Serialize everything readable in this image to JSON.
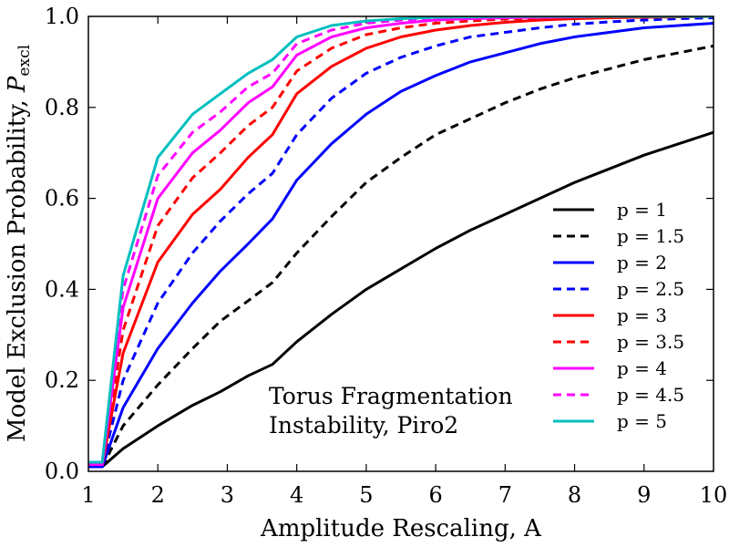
{
  "chart_data": {
    "type": "line",
    "title": "",
    "xlabel": "Amplitude Rescaling, A",
    "ylabel_main": "Model Exclusion Probability, ",
    "ylabel_symbol": "P",
    "ylabel_sub": "excl",
    "xlim": [
      1,
      10
    ],
    "ylim": [
      0,
      1
    ],
    "xticks": [
      "1",
      "2",
      "3",
      "4",
      "5",
      "6",
      "7",
      "8",
      "9",
      "10"
    ],
    "yticks": [
      "0.0",
      "0.2",
      "0.4",
      "0.6",
      "0.8",
      "1.0"
    ],
    "grid": false,
    "legend_position": "right",
    "annotation_lines": [
      "Torus Fragmentation",
      "Instability, Piro2"
    ],
    "series": [
      {
        "name": "p = 1",
        "color": "#000000",
        "dash": "solid",
        "x": [
          1,
          1.1,
          1.2,
          1.5,
          2,
          2.5,
          2.9,
          3.3,
          3.65,
          4,
          4.5,
          5,
          5.5,
          6,
          6.5,
          7,
          7.5,
          8,
          8.5,
          9,
          9.5,
          10
        ],
        "y": [
          0.01,
          0.01,
          0.01,
          0.05,
          0.1,
          0.145,
          0.175,
          0.21,
          0.235,
          0.285,
          0.345,
          0.4,
          0.445,
          0.49,
          0.53,
          0.565,
          0.6,
          0.635,
          0.665,
          0.695,
          0.72,
          0.745
        ]
      },
      {
        "name": "p = 1.5",
        "color": "#000000",
        "dash": "dashed",
        "x": [
          1,
          1.1,
          1.2,
          1.5,
          2,
          2.5,
          2.9,
          3.3,
          3.65,
          4,
          4.5,
          5,
          5.5,
          6,
          6.5,
          7,
          7.5,
          8,
          8.5,
          9,
          9.5,
          10
        ],
        "y": [
          0.01,
          0.01,
          0.01,
          0.1,
          0.19,
          0.27,
          0.33,
          0.375,
          0.415,
          0.48,
          0.56,
          0.635,
          0.69,
          0.74,
          0.775,
          0.81,
          0.84,
          0.865,
          0.885,
          0.905,
          0.92,
          0.935
        ]
      },
      {
        "name": "p = 2",
        "color": "#0000ff",
        "dash": "solid",
        "x": [
          1,
          1.1,
          1.2,
          1.5,
          2,
          2.5,
          2.9,
          3.3,
          3.65,
          4,
          4.5,
          5,
          5.5,
          6,
          6.5,
          7,
          7.5,
          8,
          8.5,
          9,
          9.5,
          10
        ],
        "y": [
          0.01,
          0.01,
          0.01,
          0.14,
          0.27,
          0.37,
          0.44,
          0.5,
          0.555,
          0.64,
          0.72,
          0.785,
          0.835,
          0.87,
          0.9,
          0.92,
          0.94,
          0.955,
          0.965,
          0.975,
          0.98,
          0.985
        ]
      },
      {
        "name": "p = 2.5",
        "color": "#0000ff",
        "dash": "dashed",
        "x": [
          1,
          1.1,
          1.2,
          1.5,
          2,
          2.5,
          2.9,
          3.3,
          3.65,
          4,
          4.5,
          5,
          5.5,
          6,
          6.5,
          7,
          7.5,
          8,
          8.5,
          9,
          9.5,
          10
        ],
        "y": [
          0.015,
          0.015,
          0.015,
          0.2,
          0.37,
          0.48,
          0.55,
          0.61,
          0.655,
          0.74,
          0.82,
          0.875,
          0.91,
          0.935,
          0.955,
          0.965,
          0.975,
          0.983,
          0.988,
          0.992,
          0.995,
          0.997
        ]
      },
      {
        "name": "p = 3",
        "color": "#ff0000",
        "dash": "solid",
        "x": [
          1,
          1.1,
          1.2,
          1.5,
          2,
          2.5,
          2.9,
          3.3,
          3.65,
          4,
          4.5,
          5,
          5.5,
          6,
          6.5,
          7,
          7.5,
          8,
          8.5,
          9,
          9.5,
          10
        ],
        "y": [
          0.015,
          0.015,
          0.015,
          0.26,
          0.46,
          0.565,
          0.62,
          0.69,
          0.74,
          0.83,
          0.89,
          0.93,
          0.955,
          0.97,
          0.98,
          0.987,
          0.992,
          0.995,
          0.997,
          0.998,
          0.999,
          1.0
        ]
      },
      {
        "name": "p = 3.5",
        "color": "#ff0000",
        "dash": "dashed",
        "x": [
          1,
          1.1,
          1.2,
          1.5,
          2,
          2.5,
          2.9,
          3.3,
          3.65,
          4,
          4.5,
          5,
          5.5,
          6,
          6.5,
          7,
          7.5,
          8,
          8.5,
          9,
          9.5,
          10
        ],
        "y": [
          0.015,
          0.015,
          0.015,
          0.31,
          0.54,
          0.645,
          0.7,
          0.76,
          0.8,
          0.88,
          0.93,
          0.96,
          0.975,
          0.985,
          0.99,
          0.994,
          0.996,
          0.998,
          0.999,
          1.0,
          1.0,
          1.0
        ]
      },
      {
        "name": "p = 4",
        "color": "#ff00ff",
        "dash": "solid",
        "x": [
          1,
          1.1,
          1.2,
          1.5,
          2,
          2.5,
          2.9,
          3.3,
          3.65,
          4,
          4.5,
          5,
          5.5,
          6,
          6.5,
          7,
          7.5,
          8,
          8.5,
          9,
          9.5,
          10
        ],
        "y": [
          0.015,
          0.015,
          0.015,
          0.36,
          0.6,
          0.7,
          0.75,
          0.81,
          0.845,
          0.915,
          0.955,
          0.975,
          0.985,
          0.992,
          0.995,
          0.997,
          0.998,
          0.999,
          1.0,
          1.0,
          1.0,
          1.0
        ]
      },
      {
        "name": "p = 4.5",
        "color": "#ff00ff",
        "dash": "dashed",
        "x": [
          1,
          1.1,
          1.2,
          1.5,
          2,
          2.5,
          2.9,
          3.3,
          3.65,
          4,
          4.5,
          5,
          5.5,
          6,
          6.5,
          7,
          7.5,
          8,
          8.5,
          9,
          9.5,
          10
        ],
        "y": [
          0.02,
          0.02,
          0.02,
          0.4,
          0.65,
          0.745,
          0.79,
          0.845,
          0.875,
          0.94,
          0.97,
          0.985,
          0.992,
          0.996,
          0.998,
          0.999,
          1.0,
          1.0,
          1.0,
          1.0,
          1.0,
          1.0
        ]
      },
      {
        "name": "p = 5",
        "color": "#00bfbf",
        "dash": "solid",
        "x": [
          1,
          1.1,
          1.2,
          1.5,
          2,
          2.5,
          2.9,
          3.3,
          3.65,
          4,
          4.5,
          5,
          5.5,
          6,
          6.5,
          7,
          7.5,
          8,
          8.5,
          9,
          9.5,
          10
        ],
        "y": [
          0.02,
          0.02,
          0.02,
          0.43,
          0.69,
          0.785,
          0.83,
          0.875,
          0.905,
          0.955,
          0.98,
          0.99,
          0.995,
          0.998,
          0.999,
          1.0,
          1.0,
          1.0,
          1.0,
          1.0,
          1.0,
          1.0
        ]
      }
    ]
  }
}
